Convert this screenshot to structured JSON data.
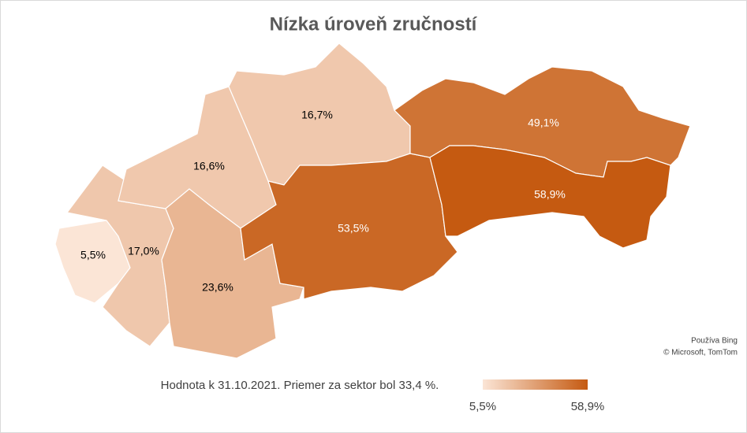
{
  "chart_data": {
    "type": "choropleth",
    "title": "Nízka úroveň zručností",
    "values": [
      5.5,
      17.0,
      16.6,
      23.6,
      16.7,
      53.5,
      49.1,
      58.9
    ],
    "value_labels": [
      "5,5%",
      "17,0%",
      "16,6%",
      "23,6%",
      "16,7%",
      "53,5%",
      "49,1%",
      "58,9%"
    ],
    "color_min": "#fbe5d6",
    "color_max": "#c55a11",
    "scale_ticks": [
      {
        "value": 5.5,
        "label": "5,5%"
      },
      {
        "value": 58.9,
        "label": "58,9%"
      }
    ],
    "note": "Hodnota k 31.10.2021. Priemer za sektor bol 33,4 %.",
    "attribution": [
      "Používa Bing",
      "© Microsoft, TomTom"
    ]
  }
}
